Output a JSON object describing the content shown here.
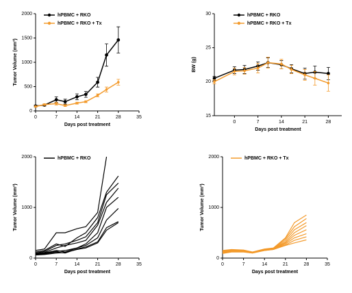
{
  "chart_data": [
    {
      "type": "line",
      "y_label": "Tumor Volume (mm³)",
      "x_label": "Days post treatment",
      "x": [
        0,
        3,
        7,
        10,
        14,
        17,
        21,
        24,
        28
      ],
      "xlim": [
        0,
        35
      ],
      "xticks": [
        0,
        7,
        14,
        21,
        28,
        35
      ],
      "ylim": [
        0,
        2000
      ],
      "yticks": [
        0,
        500,
        1000,
        1500,
        2000
      ],
      "legend": "upper left",
      "series": [
        {
          "name": "hPBMC + RKO",
          "color": "#000000",
          "values": [
            100,
            120,
            230,
            190,
            290,
            340,
            590,
            1150,
            1460
          ],
          "errors": [
            20,
            20,
            60,
            50,
            60,
            60,
            100,
            230,
            270
          ]
        },
        {
          "name": "hPBMC + RKO + Tx",
          "color": "#f39a2b",
          "values": [
            90,
            130,
            150,
            110,
            160,
            190,
            320,
            440,
            590
          ],
          "errors": [
            10,
            15,
            30,
            20,
            20,
            20,
            30,
            50,
            60
          ]
        }
      ]
    },
    {
      "type": "line",
      "y_label": "BW (g)",
      "x_label": "Days post treatment",
      "x": [
        -6,
        0,
        3,
        7,
        10,
        14,
        17,
        21,
        24,
        28
      ],
      "xlim": [
        -6,
        32
      ],
      "xticks": [
        0,
        7,
        14,
        21,
        28
      ],
      "ylim": [
        15,
        30
      ],
      "yticks": [
        15,
        20,
        25,
        30
      ],
      "legend": "upper right",
      "series": [
        {
          "name": "hPBMC + RKO",
          "color": "#000000",
          "values": [
            20.5,
            21.7,
            21.8,
            22.3,
            22.8,
            22.5,
            21.9,
            21.2,
            21.4,
            21.2
          ],
          "errors": [
            0.3,
            0.5,
            0.6,
            0.6,
            0.7,
            0.6,
            0.6,
            0.8,
            0.9,
            0.9
          ]
        },
        {
          "name": "hPBMC + RKO + Tx",
          "color": "#f39a2b",
          "values": [
            20.0,
            21.5,
            21.6,
            22.0,
            22.8,
            22.6,
            21.8,
            21.0,
            20.5,
            19.8
          ],
          "errors": [
            0.3,
            0.5,
            0.5,
            0.7,
            0.8,
            0.7,
            0.6,
            0.8,
            1.0,
            1.2
          ]
        }
      ]
    },
    {
      "type": "line",
      "y_label": "Tumor Volume (mm³)",
      "x_label": "Days post treatment",
      "x": [
        0,
        3,
        7,
        10,
        14,
        17,
        21,
        24,
        28
      ],
      "xlim": [
        0,
        35
      ],
      "xticks": [
        0,
        7,
        14,
        21,
        28,
        35
      ],
      "ylim": [
        0,
        2000
      ],
      "yticks": [
        0,
        1000,
        2000
      ],
      "legend": "upper left",
      "series": [
        {
          "name": "hPBMC + RKO",
          "color": "#000000",
          "lines": [
            [
              150,
              180,
              500,
              500,
              580,
              620,
              900,
              2000,
              null
            ],
            [
              120,
              150,
              280,
              230,
              400,
              500,
              800,
              1300,
              1620
            ],
            [
              100,
              130,
              250,
              280,
              350,
              420,
              700,
              1250,
              1480
            ],
            [
              90,
              110,
              200,
              250,
              300,
              350,
              650,
              1100,
              1380
            ],
            [
              80,
              100,
              150,
              120,
              200,
              280,
              500,
              1000,
              1200
            ],
            [
              70,
              90,
              130,
              150,
              200,
              250,
              400,
              750,
              980
            ],
            [
              60,
              80,
              120,
              100,
              180,
              220,
              320,
              600,
              720
            ],
            [
              60,
              70,
              100,
              110,
              170,
              200,
              300,
              550,
              700
            ]
          ]
        }
      ]
    },
    {
      "type": "line",
      "y_label": "Tumor Volume (mm³)",
      "x_label": "Days post treatment",
      "x": [
        0,
        3,
        7,
        10,
        14,
        17,
        21,
        24,
        28
      ],
      "xlim": [
        0,
        35
      ],
      "xticks": [
        0,
        7,
        14,
        21,
        28,
        35
      ],
      "ylim": [
        0,
        2000
      ],
      "yticks": [
        0,
        1000,
        2000
      ],
      "legend": "upper left",
      "series": [
        {
          "name": "hPBMC + RKO + Tx",
          "color": "#f39a2b",
          "lines": [
            [
              150,
              170,
              160,
              120,
              180,
              200,
              400,
              700,
              850
            ],
            [
              140,
              160,
              150,
              115,
              175,
              195,
              380,
              620,
              780
            ],
            [
              130,
              150,
              145,
              110,
              170,
              190,
              350,
              560,
              700
            ],
            [
              120,
              145,
              140,
              110,
              165,
              185,
              320,
              500,
              640
            ],
            [
              110,
              140,
              135,
              105,
              160,
              180,
              300,
              450,
              560
            ],
            [
              100,
              130,
              130,
              105,
              155,
              175,
              280,
              400,
              480
            ],
            [
              95,
              125,
              125,
              100,
              150,
              170,
              260,
              350,
              420
            ],
            [
              90,
              120,
              120,
              100,
              150,
              170,
              250,
              300,
              360
            ]
          ]
        }
      ]
    }
  ]
}
